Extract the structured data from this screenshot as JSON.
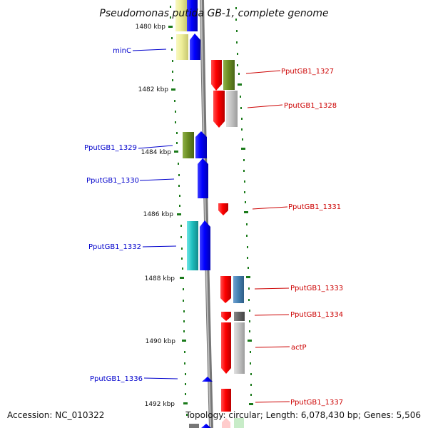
{
  "title": "Pseudomonas putida GB-1, complete genome",
  "accession": "Accession: NC_010322",
  "genome_info": "Topology: circular; Length: 6,078,430 bp; Genes: 5,506",
  "colors": {
    "label_blue": "#0000cc",
    "label_red": "#cc0000",
    "tick_green": "#1a7a1a",
    "backbone_gray": "#8c8c8c",
    "gene_blue": "#0000ff",
    "gene_red": "#ff0000",
    "gene_olive": "#6b8e23",
    "gene_cyan": "#20c0c0",
    "gene_gray": "#c0c0c0",
    "gene_darkgray": "#666666",
    "gene_steelblue": "#4682b4",
    "gene_yellow": "#eeee99"
  },
  "position_ticks": [
    {
      "label": "1480 kbp",
      "kbp": 1480
    },
    {
      "label": "1482 kbp",
      "kbp": 1482
    },
    {
      "label": "1484 kbp",
      "kbp": 1484
    },
    {
      "label": "1486 kbp",
      "kbp": 1486
    },
    {
      "label": "1488 kbp",
      "kbp": 1488
    },
    {
      "label": "1490 kbp",
      "kbp": 1490
    },
    {
      "label": "1492 kbp",
      "kbp": 1492
    }
  ],
  "gene_labels": {
    "left": [
      "minC",
      "PputGB1_1329",
      "PputGB1_1330",
      "PputGB1_1332",
      "PputGB1_1336"
    ],
    "right": [
      "PputGB1_1327",
      "PputGB1_1328",
      "PputGB1_1331",
      "PputGB1_1333",
      "PputGB1_1334",
      "actP",
      "PputGB1_1337"
    ]
  }
}
